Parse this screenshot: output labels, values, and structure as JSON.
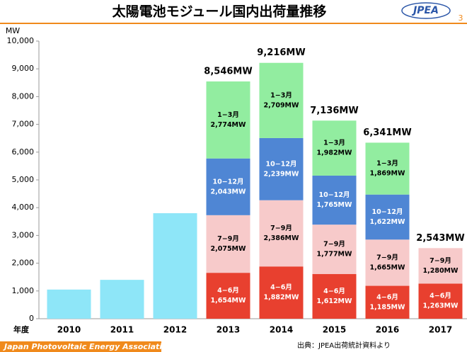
{
  "chart_data": {
    "type": "stacked_bar",
    "title": "太陽電池モジュール国内出荷量推移",
    "page_number": "3",
    "logo": "JPEA",
    "y_label": "MW",
    "x_label": "年度",
    "footer_org": "Japan Photovoltaic Energy Association",
    "source": "出典：JPEA出荷統計資料より",
    "categories": [
      "2010",
      "2011",
      "2012",
      "2013",
      "2014",
      "2015",
      "2016",
      "2017"
    ],
    "series": [
      {
        "color": "#8ee6f8",
        "text_color": "#000000",
        "values": [
          1050,
          1400,
          3800,
          null,
          null,
          null,
          null,
          null
        ]
      },
      {
        "name": "4−6月",
        "color": "#e8402f",
        "text_color": "#ffffff",
        "values": [
          null,
          null,
          null,
          1654,
          1882,
          1612,
          1185,
          1263
        ],
        "value_labels": [
          null,
          null,
          null,
          "1,654MW",
          "1,882MW",
          "1,612MW",
          "1,185MW",
          "1,263MW"
        ]
      },
      {
        "name": "7−9月",
        "color": "#f7caca",
        "text_color": "#000000",
        "values": [
          null,
          null,
          null,
          2075,
          2386,
          1777,
          1665,
          1280
        ],
        "value_labels": [
          null,
          null,
          null,
          "2,075MW",
          "2,386MW",
          "1,777MW",
          "1,665MW",
          "1,280MW"
        ]
      },
      {
        "name": "10−12月",
        "color": "#4f86d4",
        "text_color": "#ffffff",
        "values": [
          null,
          null,
          null,
          2043,
          2239,
          1765,
          1622,
          null
        ],
        "value_labels": [
          null,
          null,
          null,
          "2,043MW",
          "2,239MW",
          "1,765MW",
          "1,622MW",
          null
        ]
      },
      {
        "name": "1−3月",
        "color": "#92eda0",
        "text_color": "#000000",
        "values": [
          null,
          null,
          null,
          2774,
          2709,
          1982,
          1869,
          null
        ],
        "value_labels": [
          null,
          null,
          null,
          "2,774MW",
          "2,709MW",
          "1,982MW",
          "1,869MW",
          null
        ]
      }
    ],
    "totals": [
      null,
      null,
      null,
      8546,
      9216,
      7136,
      6341,
      2543
    ],
    "total_labels": [
      null,
      null,
      null,
      "8,546MW",
      "9,216MW",
      "7,136MW",
      "6,341MW",
      "2,543MW"
    ],
    "ylim": [
      0,
      10000
    ],
    "yticks": [
      0,
      {
        "value": 1000,
        "label": "1,000"
      },
      {
        "value": 2000,
        "label": "2,000"
      },
      {
        "value": 3000,
        "label": "3,000"
      },
      {
        "value": 4000,
        "label": "4,000"
      },
      {
        "value": 5000,
        "label": "5,000"
      },
      {
        "value": 6000,
        "label": "6,000"
      },
      {
        "value": 7000,
        "label": "7,000"
      },
      {
        "value": 8000,
        "label": "8,000"
      },
      {
        "value": 9000,
        "label": "9,000"
      },
      {
        "value": 10000,
        "label": "10,000"
      }
    ]
  }
}
